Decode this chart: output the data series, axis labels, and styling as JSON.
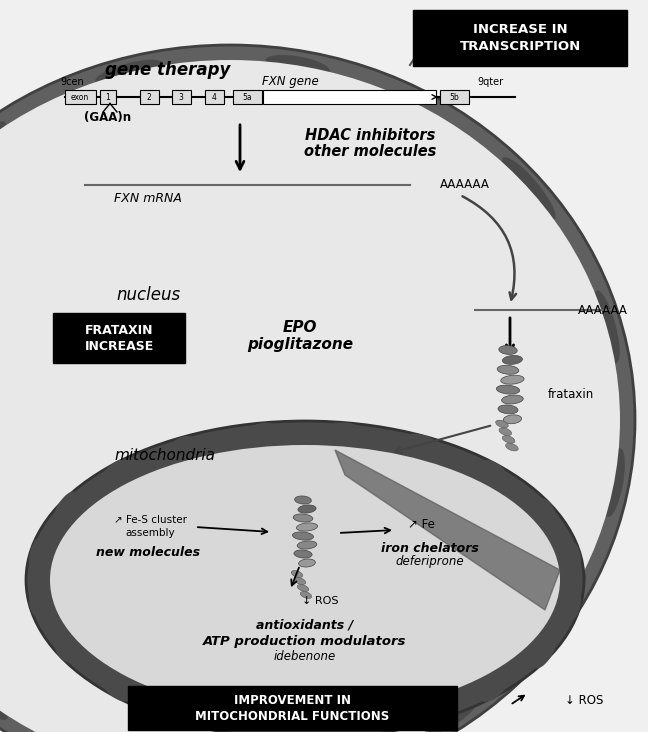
{
  "bg_color": "#f0f0f0",
  "nucleus_bg": "#e8e8e8",
  "mito_bg": "#d8d8d8",
  "dark_gray": "#555555",
  "darker_gray": "#3a3a3a",
  "black": "#000000",
  "white": "#ffffff",
  "title_increase": "INCREASE IN\nTRANSCRIPTION",
  "title_improvement": "IMPROVEMENT IN\nMITOCHONDRIAL FUNCTIONS",
  "label_gene_therapy": "gene therapy",
  "label_fxn_gene": "FXN gene",
  "label_9cen": "9cen",
  "label_9qter": "9qter",
  "label_gaa": "(GAA)n",
  "label_hdac1": "HDAC inhibitors",
  "label_hdac2": "other molecules",
  "label_fxn_mrna": "FXN mRNA",
  "label_aaaaaa1": "AAAAAA",
  "label_aaaaaa2": "AAAAAA",
  "label_nucleus": "nucleus",
  "label_frataxin_increase": "FRATAXIN\nINCREASE",
  "label_epo1": "EPO",
  "label_epo2": "pioglitazone",
  "label_frataxin": "frataxin",
  "label_mitochondria": "mitochondria",
  "label_fes1": "↗ Fe-S cluster",
  "label_fes2": "assembly",
  "label_new_molecules": "new molecules",
  "label_fe": "↗ Fe",
  "label_iron_chelators": "iron chelators",
  "label_deferiprone": "deferiprone",
  "label_ros1": "↓ ROS",
  "label_antioxidants1": "antioxidants /",
  "label_antioxidants2": "ATP production modulators",
  "label_idebenone": "idebenone",
  "label_ros2": "↓ ROS"
}
